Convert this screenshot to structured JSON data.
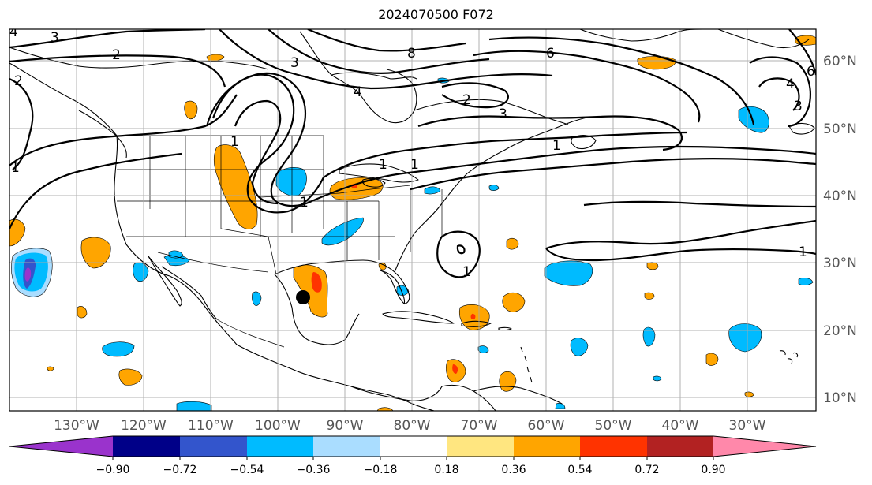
{
  "title": "2024070500 F072",
  "latitude_labels": [
    "60°N",
    "50°N",
    "40°N",
    "30°N",
    "20°N",
    "10°N"
  ],
  "longitude_labels": [
    "130°W",
    "120°W",
    "110°W",
    "100°W",
    "90°W",
    "80°W",
    "70°W",
    "60°W",
    "50°W",
    "40°W",
    "30°W"
  ],
  "colorbar": {
    "tick_labels": [
      "−0.90",
      "−0.72",
      "−0.54",
      "−0.36",
      "−0.18",
      "0.18",
      "0.36",
      "0.54",
      "0.72",
      "0.90"
    ],
    "colors": [
      "#9a33cc",
      "#000088",
      "#3355cc",
      "#00bbff",
      "#aaddff",
      "#ffffff",
      "#ffe680",
      "#ffa500",
      "#ff3300",
      "#b22222",
      "#ff88aa"
    ]
  },
  "contour_labels": [
    "3",
    "2",
    "2",
    "1",
    "1",
    "1",
    "1",
    "1",
    "3",
    "4",
    "8",
    "6",
    "2",
    "3",
    "1",
    "4",
    "6",
    "3",
    "1",
    "4",
    "1"
  ],
  "marker": {
    "name": "point-marker",
    "color": "#000000"
  },
  "colors": {
    "contour": "#000000",
    "coastline": "#000000",
    "grid": "#aaaaaa",
    "axis_text": "#555555"
  }
}
